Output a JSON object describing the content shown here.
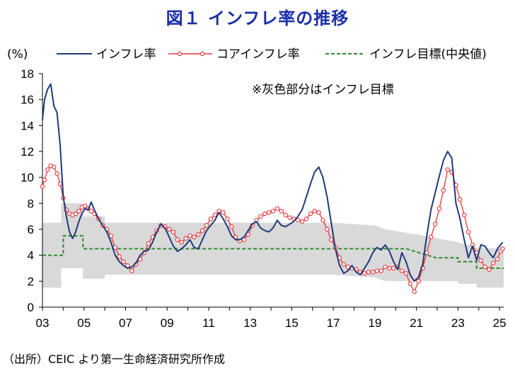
{
  "title": "図１ インフレ率の推移",
  "source": "（出所）CEIC より第一生命経済研究所作成",
  "chart_data": {
    "type": "line",
    "ylabel": "(%)",
    "ylim": [
      0,
      18
    ],
    "yticks": [
      0,
      2,
      4,
      6,
      8,
      10,
      12,
      14,
      16,
      18
    ],
    "xlim": [
      2003,
      2025.2
    ],
    "xticks": [
      {
        "x": 2003,
        "label": "03"
      },
      {
        "x": 2005,
        "label": "05"
      },
      {
        "x": 2007,
        "label": "07"
      },
      {
        "x": 2009,
        "label": "09"
      },
      {
        "x": 2011,
        "label": "11"
      },
      {
        "x": 2013,
        "label": "13"
      },
      {
        "x": 2015,
        "label": "15"
      },
      {
        "x": 2017,
        "label": "17"
      },
      {
        "x": 2019,
        "label": "19"
      },
      {
        "x": 2021,
        "label": "21"
      },
      {
        "x": 2023,
        "label": "23"
      },
      {
        "x": 2025,
        "label": "25"
      }
    ],
    "annotation": "※灰色部分はインフレ目標",
    "legend": [
      "インフレ率",
      "コアインフレ率",
      "インフレ目標(中央値)"
    ],
    "colors": {
      "inflation": "#1f3a7a",
      "core": "#e8363c",
      "target": "#2e8b2e",
      "band": "#d9d9d9"
    },
    "series": [
      {
        "name": "インフレ率",
        "points": [
          [
            2003.0,
            14.4
          ],
          [
            2003.1,
            16.0
          ],
          [
            2003.25,
            16.8
          ],
          [
            2003.4,
            17.2
          ],
          [
            2003.55,
            15.5
          ],
          [
            2003.7,
            15.0
          ],
          [
            2003.85,
            12.5
          ],
          [
            2004.0,
            8.5
          ],
          [
            2004.15,
            7.0
          ],
          [
            2004.3,
            5.8
          ],
          [
            2004.45,
            5.3
          ],
          [
            2004.6,
            5.8
          ],
          [
            2004.75,
            6.6
          ],
          [
            2004.9,
            7.2
          ],
          [
            2005.05,
            7.6
          ],
          [
            2005.2,
            7.5
          ],
          [
            2005.35,
            8.1
          ],
          [
            2005.5,
            7.5
          ],
          [
            2005.7,
            6.8
          ],
          [
            2005.9,
            6.3
          ],
          [
            2006.1,
            5.8
          ],
          [
            2006.3,
            5.0
          ],
          [
            2006.5,
            4.0
          ],
          [
            2006.7,
            3.5
          ],
          [
            2006.9,
            3.2
          ],
          [
            2007.1,
            3.0
          ],
          [
            2007.3,
            3.1
          ],
          [
            2007.5,
            3.4
          ],
          [
            2007.7,
            4.0
          ],
          [
            2007.9,
            4.3
          ],
          [
            2008.1,
            4.4
          ],
          [
            2008.3,
            5.0
          ],
          [
            2008.5,
            5.8
          ],
          [
            2008.7,
            6.4
          ],
          [
            2008.9,
            6.1
          ],
          [
            2009.1,
            5.4
          ],
          [
            2009.3,
            4.7
          ],
          [
            2009.5,
            4.3
          ],
          [
            2009.7,
            4.5
          ],
          [
            2009.9,
            4.8
          ],
          [
            2010.1,
            5.2
          ],
          [
            2010.3,
            4.6
          ],
          [
            2010.5,
            4.5
          ],
          [
            2010.7,
            5.2
          ],
          [
            2010.9,
            5.9
          ],
          [
            2011.1,
            6.3
          ],
          [
            2011.3,
            6.7
          ],
          [
            2011.5,
            7.3
          ],
          [
            2011.7,
            6.8
          ],
          [
            2011.9,
            6.2
          ],
          [
            2012.1,
            5.5
          ],
          [
            2012.3,
            5.2
          ],
          [
            2012.5,
            5.2
          ],
          [
            2012.7,
            5.4
          ],
          [
            2012.9,
            5.9
          ],
          [
            2013.1,
            6.4
          ],
          [
            2013.3,
            6.6
          ],
          [
            2013.5,
            6.1
          ],
          [
            2013.7,
            5.9
          ],
          [
            2013.9,
            5.8
          ],
          [
            2014.1,
            6.1
          ],
          [
            2014.3,
            6.7
          ],
          [
            2014.5,
            6.3
          ],
          [
            2014.7,
            6.2
          ],
          [
            2014.9,
            6.4
          ],
          [
            2015.1,
            6.6
          ],
          [
            2015.3,
            7.0
          ],
          [
            2015.5,
            7.5
          ],
          [
            2015.7,
            8.5
          ],
          [
            2015.9,
            9.5
          ],
          [
            2016.1,
            10.4
          ],
          [
            2016.3,
            10.8
          ],
          [
            2016.5,
            10.0
          ],
          [
            2016.7,
            8.5
          ],
          [
            2016.9,
            6.5
          ],
          [
            2017.1,
            4.5
          ],
          [
            2017.3,
            3.2
          ],
          [
            2017.5,
            2.6
          ],
          [
            2017.7,
            2.8
          ],
          [
            2017.9,
            3.2
          ],
          [
            2018.1,
            2.7
          ],
          [
            2018.3,
            2.5
          ],
          [
            2018.5,
            3.0
          ],
          [
            2018.7,
            3.5
          ],
          [
            2018.9,
            4.2
          ],
          [
            2019.1,
            4.6
          ],
          [
            2019.3,
            4.4
          ],
          [
            2019.5,
            4.8
          ],
          [
            2019.7,
            4.3
          ],
          [
            2019.9,
            3.5
          ],
          [
            2020.1,
            2.9
          ],
          [
            2020.3,
            4.2
          ],
          [
            2020.5,
            3.5
          ],
          [
            2020.7,
            2.5
          ],
          [
            2020.9,
            2.0
          ],
          [
            2021.1,
            2.3
          ],
          [
            2021.3,
            3.3
          ],
          [
            2021.5,
            5.5
          ],
          [
            2021.7,
            7.5
          ],
          [
            2021.9,
            8.8
          ],
          [
            2022.1,
            10.1
          ],
          [
            2022.3,
            11.3
          ],
          [
            2022.5,
            12.0
          ],
          [
            2022.7,
            11.5
          ],
          [
            2022.9,
            8.0
          ],
          [
            2023.1,
            6.8
          ],
          [
            2023.3,
            5.2
          ],
          [
            2023.5,
            3.8
          ],
          [
            2023.7,
            4.7
          ],
          [
            2023.9,
            3.6
          ],
          [
            2024.1,
            4.8
          ],
          [
            2024.3,
            4.7
          ],
          [
            2024.5,
            4.2
          ],
          [
            2024.7,
            3.8
          ],
          [
            2024.9,
            4.5
          ],
          [
            2025.05,
            4.8
          ],
          [
            2025.15,
            5.0
          ]
        ]
      },
      {
        "name": "コアインフレ率",
        "points": [
          [
            2003.0,
            9.3
          ],
          [
            2003.1,
            9.8
          ],
          [
            2003.25,
            10.6
          ],
          [
            2003.4,
            10.9
          ],
          [
            2003.55,
            10.8
          ],
          [
            2003.7,
            10.3
          ],
          [
            2003.85,
            9.5
          ],
          [
            2004.0,
            8.4
          ],
          [
            2004.15,
            7.5
          ],
          [
            2004.3,
            7.2
          ],
          [
            2004.45,
            7.1
          ],
          [
            2004.6,
            7.2
          ],
          [
            2004.75,
            7.4
          ],
          [
            2004.9,
            7.7
          ],
          [
            2005.05,
            7.8
          ],
          [
            2005.2,
            7.6
          ],
          [
            2005.35,
            7.4
          ],
          [
            2005.5,
            7.2
          ],
          [
            2005.7,
            6.8
          ],
          [
            2005.9,
            6.3
          ],
          [
            2006.1,
            6.0
          ],
          [
            2006.3,
            5.5
          ],
          [
            2006.5,
            4.6
          ],
          [
            2006.7,
            3.9
          ],
          [
            2006.9,
            3.5
          ],
          [
            2007.1,
            3.2
          ],
          [
            2007.3,
            2.8
          ],
          [
            2007.5,
            3.3
          ],
          [
            2007.7,
            3.7
          ],
          [
            2007.9,
            4.2
          ],
          [
            2008.1,
            4.9
          ],
          [
            2008.3,
            5.4
          ],
          [
            2008.5,
            5.9
          ],
          [
            2008.7,
            6.3
          ],
          [
            2008.9,
            6.2
          ],
          [
            2009.1,
            6.0
          ],
          [
            2009.3,
            5.8
          ],
          [
            2009.5,
            5.2
          ],
          [
            2009.7,
            5.0
          ],
          [
            2009.9,
            5.3
          ],
          [
            2010.1,
            5.5
          ],
          [
            2010.3,
            5.4
          ],
          [
            2010.5,
            5.6
          ],
          [
            2010.7,
            5.9
          ],
          [
            2010.9,
            6.3
          ],
          [
            2011.1,
            6.8
          ],
          [
            2011.3,
            7.1
          ],
          [
            2011.5,
            7.4
          ],
          [
            2011.7,
            7.3
          ],
          [
            2011.9,
            6.8
          ],
          [
            2012.1,
            6.2
          ],
          [
            2012.3,
            5.4
          ],
          [
            2012.5,
            5.1
          ],
          [
            2012.7,
            5.2
          ],
          [
            2012.9,
            5.6
          ],
          [
            2013.1,
            6.3
          ],
          [
            2013.3,
            6.7
          ],
          [
            2013.5,
            7.0
          ],
          [
            2013.7,
            7.2
          ],
          [
            2013.9,
            7.3
          ],
          [
            2014.1,
            7.4
          ],
          [
            2014.3,
            7.6
          ],
          [
            2014.5,
            7.4
          ],
          [
            2014.7,
            7.1
          ],
          [
            2014.9,
            6.9
          ],
          [
            2015.1,
            6.8
          ],
          [
            2015.3,
            6.7
          ],
          [
            2015.5,
            6.6
          ],
          [
            2015.7,
            6.8
          ],
          [
            2015.9,
            7.2
          ],
          [
            2016.1,
            7.4
          ],
          [
            2016.3,
            7.3
          ],
          [
            2016.5,
            6.7
          ],
          [
            2016.7,
            6.0
          ],
          [
            2016.9,
            5.2
          ],
          [
            2017.1,
            4.6
          ],
          [
            2017.3,
            3.8
          ],
          [
            2017.5,
            3.3
          ],
          [
            2017.7,
            3.1
          ],
          [
            2017.9,
            3.0
          ],
          [
            2018.1,
            2.9
          ],
          [
            2018.3,
            2.7
          ],
          [
            2018.5,
            2.6
          ],
          [
            2018.7,
            2.7
          ],
          [
            2018.9,
            2.7
          ],
          [
            2019.1,
            2.8
          ],
          [
            2019.3,
            2.8
          ],
          [
            2019.5,
            3.1
          ],
          [
            2019.7,
            3.0
          ],
          [
            2019.9,
            3.0
          ],
          [
            2020.1,
            3.1
          ],
          [
            2020.3,
            2.8
          ],
          [
            2020.5,
            2.6
          ],
          [
            2020.7,
            1.8
          ],
          [
            2020.9,
            1.2
          ],
          [
            2021.1,
            2.0
          ],
          [
            2021.3,
            3.0
          ],
          [
            2021.5,
            4.2
          ],
          [
            2021.7,
            5.4
          ],
          [
            2021.9,
            6.4
          ],
          [
            2022.1,
            7.6
          ],
          [
            2022.3,
            9.0
          ],
          [
            2022.5,
            10.6
          ],
          [
            2022.7,
            10.4
          ],
          [
            2022.9,
            9.4
          ],
          [
            2023.1,
            8.3
          ],
          [
            2023.3,
            7.1
          ],
          [
            2023.5,
            5.8
          ],
          [
            2023.7,
            4.8
          ],
          [
            2023.9,
            4.2
          ],
          [
            2024.1,
            3.6
          ],
          [
            2024.3,
            3.1
          ],
          [
            2024.5,
            2.9
          ],
          [
            2024.7,
            3.4
          ],
          [
            2024.9,
            3.7
          ],
          [
            2025.05,
            4.3
          ],
          [
            2025.15,
            4.5
          ]
        ]
      },
      {
        "name": "インフレ目標(中央値)",
        "points": [
          [
            2003.0,
            4.0
          ],
          [
            2004.0,
            4.0
          ],
          [
            2004.0,
            5.5
          ],
          [
            2004.95,
            5.5
          ],
          [
            2004.95,
            4.5
          ],
          [
            2020.5,
            4.5
          ],
          [
            2021.95,
            3.8
          ],
          [
            2023.0,
            3.8
          ],
          [
            2023.0,
            3.5
          ],
          [
            2023.9,
            3.5
          ],
          [
            2023.9,
            3.0
          ],
          [
            2025.2,
            3.0
          ]
        ]
      }
    ],
    "band": {
      "name": "インフレ目標",
      "upper": [
        [
          2003.0,
          6.5
        ],
        [
          2003.9,
          6.5
        ],
        [
          2003.9,
          8.0
        ],
        [
          2004.95,
          8.0
        ],
        [
          2004.95,
          7.0
        ],
        [
          2006.0,
          7.0
        ],
        [
          2006.0,
          6.5
        ],
        [
          2016.95,
          6.5
        ],
        [
          2019.0,
          6.3
        ],
        [
          2019.5,
          6.0
        ],
        [
          2021.0,
          5.6
        ],
        [
          2022.0,
          5.3
        ],
        [
          2023.0,
          5.0
        ],
        [
          2023.9,
          4.6
        ],
        [
          2025.2,
          4.5
        ]
      ],
      "lower": [
        [
          2003.0,
          1.5
        ],
        [
          2003.9,
          1.5
        ],
        [
          2003.9,
          3.0
        ],
        [
          2004.95,
          3.0
        ],
        [
          2004.95,
          2.2
        ],
        [
          2006.0,
          2.2
        ],
        [
          2006.0,
          2.5
        ],
        [
          2016.95,
          2.5
        ],
        [
          2019.0,
          2.3
        ],
        [
          2019.5,
          2.0
        ],
        [
          2021.0,
          2.0
        ],
        [
          2021.95,
          2.0
        ],
        [
          2023.0,
          2.0
        ],
        [
          2023.0,
          1.8
        ],
        [
          2023.9,
          1.8
        ],
        [
          2023.9,
          1.5
        ],
        [
          2025.2,
          1.5
        ]
      ]
    }
  }
}
